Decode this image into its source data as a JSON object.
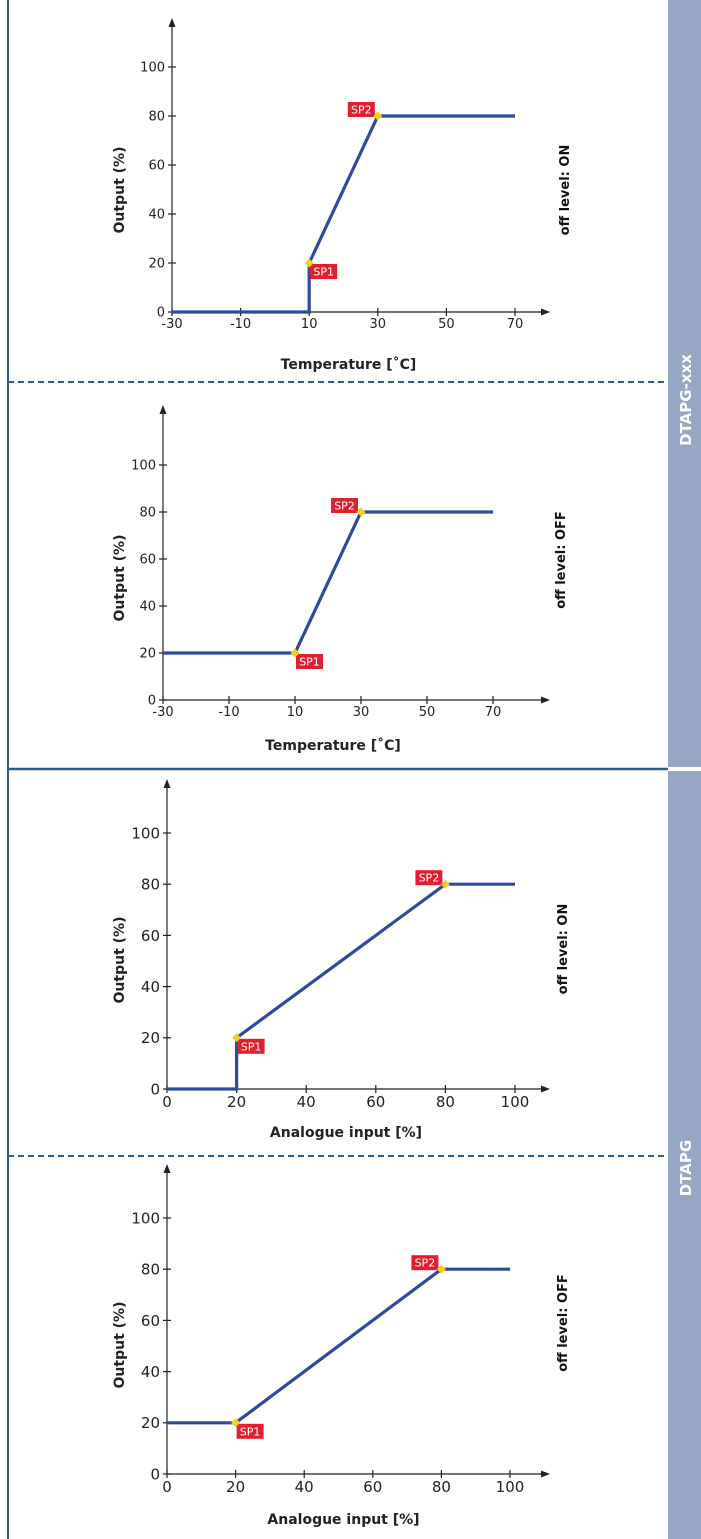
{
  "colors": {
    "series": "#2e4a9a",
    "marker": "#f3d11b",
    "sp_box": "#e0202f",
    "band": "#96a6c5",
    "frame": "#2d5d8a",
    "axis": "#222222"
  },
  "side_bands": [
    {
      "label": "DTAPG-xxx"
    },
    {
      "label": "DTAPG"
    }
  ],
  "chart_data": [
    {
      "type": "line",
      "xlabel": "Temperature [˚C]",
      "ylabel": "Output (%)",
      "side_label": "off level: ON",
      "xlim": [
        -30,
        70
      ],
      "ylim": [
        0,
        100
      ],
      "x_ticks": [
        "-30",
        "-10",
        "10",
        "30",
        "50",
        "70"
      ],
      "y_ticks": [
        "0",
        "20",
        "40",
        "60",
        "80",
        "100"
      ],
      "series": [
        {
          "x": [
            -30,
            10,
            10,
            30,
            70
          ],
          "y": [
            0,
            0,
            20,
            80,
            80
          ]
        }
      ],
      "setpoints": [
        {
          "label": "SP1",
          "x": 10,
          "y": 20,
          "box": "below-right"
        },
        {
          "label": "SP2",
          "x": 30,
          "y": 80,
          "box": "left"
        }
      ]
    },
    {
      "type": "line",
      "xlabel": "Temperature [˚C]",
      "ylabel": "Output (%)",
      "side_label": "off level: OFF",
      "xlim": [
        -30,
        70
      ],
      "ylim": [
        0,
        100
      ],
      "x_ticks": [
        "-30",
        "-10",
        "10",
        "30",
        "50",
        "70"
      ],
      "y_ticks": [
        "0",
        "20",
        "40",
        "60",
        "80",
        "100"
      ],
      "series": [
        {
          "x": [
            -30,
            10,
            30,
            70
          ],
          "y": [
            20,
            20,
            80,
            80
          ]
        }
      ],
      "setpoints": [
        {
          "label": "SP1",
          "x": 10,
          "y": 20,
          "box": "below-right"
        },
        {
          "label": "SP2",
          "x": 30,
          "y": 80,
          "box": "left"
        }
      ]
    },
    {
      "type": "line",
      "xlabel": "Analogue input [%]",
      "ylabel": "Output (%)",
      "side_label": "off level: ON",
      "xlim": [
        0,
        100
      ],
      "ylim": [
        0,
        100
      ],
      "x_ticks": [
        "0",
        "20",
        "40",
        "60",
        "80",
        "100"
      ],
      "y_ticks": [
        "0",
        "20",
        "40",
        "60",
        "80",
        "100"
      ],
      "series": [
        {
          "x": [
            0,
            20,
            20,
            80,
            100
          ],
          "y": [
            0,
            0,
            20,
            80,
            80
          ]
        }
      ],
      "setpoints": [
        {
          "label": "SP1",
          "x": 20,
          "y": 20,
          "box": "below-right"
        },
        {
          "label": "SP2",
          "x": 80,
          "y": 80,
          "box": "left"
        }
      ]
    },
    {
      "type": "line",
      "xlabel": "Analogue input [%]",
      "ylabel": "Output (%)",
      "side_label": "off level: OFF",
      "xlim": [
        0,
        100
      ],
      "ylim": [
        0,
        100
      ],
      "x_ticks": [
        "0",
        "20",
        "40",
        "60",
        "80",
        "100"
      ],
      "y_ticks": [
        "0",
        "20",
        "40",
        "60",
        "80",
        "100"
      ],
      "series": [
        {
          "x": [
            0,
            20,
            80,
            100
          ],
          "y": [
            20,
            20,
            80,
            80
          ]
        }
      ],
      "setpoints": [
        {
          "label": "SP1",
          "x": 20,
          "y": 20,
          "box": "below-right"
        },
        {
          "label": "SP2",
          "x": 80,
          "y": 80,
          "box": "left"
        }
      ]
    }
  ]
}
